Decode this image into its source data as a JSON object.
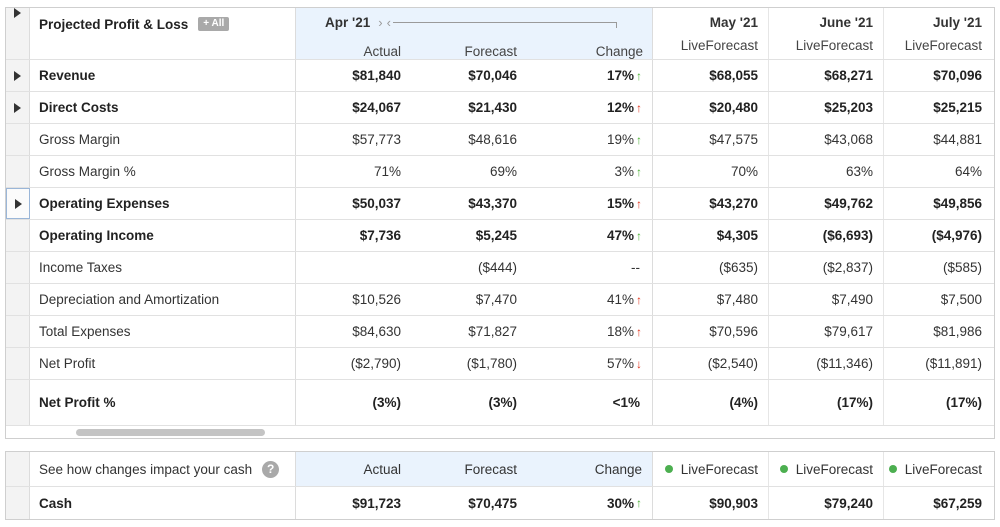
{
  "header": {
    "title": "Projected Profit & Loss",
    "all_badge": "+ All",
    "apr": {
      "month": "Apr '21",
      "nav_left": "›",
      "nav_right": "‹",
      "actual": "Actual",
      "forecast": "Forecast",
      "change": "Change"
    },
    "may": {
      "month": "May '21",
      "sub": "LiveForecast"
    },
    "june": {
      "month": "June '21",
      "sub": "LiveForecast"
    },
    "july": {
      "month": "July '21",
      "sub": "LiveForecast"
    }
  },
  "rows": [
    {
      "label": "Revenue",
      "actual": "$81,840",
      "forecast": "$70,046",
      "change": "17%",
      "change_dir": "up-green",
      "may": "$68,055",
      "june": "$68,271",
      "july": "$70,096"
    },
    {
      "label": "Direct Costs",
      "actual": "$24,067",
      "forecast": "$21,430",
      "change": "12%",
      "change_dir": "up-red",
      "may": "$20,480",
      "june": "$25,203",
      "july": "$25,215"
    },
    {
      "label": "Gross Margin",
      "actual": "$57,773",
      "forecast": "$48,616",
      "change": "19%",
      "change_dir": "up-green",
      "may": "$47,575",
      "june": "$43,068",
      "july": "$44,881"
    },
    {
      "label": "Gross Margin %",
      "actual": "71%",
      "forecast": "69%",
      "change": "3%",
      "change_dir": "up-green",
      "may": "70%",
      "june": "63%",
      "july": "64%"
    },
    {
      "label": "Operating Expenses",
      "actual": "$50,037",
      "forecast": "$43,370",
      "change": "15%",
      "change_dir": "up-red",
      "may": "$43,270",
      "june": "$49,762",
      "july": "$49,856"
    },
    {
      "label": "Operating Income",
      "actual": "$7,736",
      "forecast": "$5,245",
      "change": "47%",
      "change_dir": "up-green",
      "may": "$4,305",
      "june": "($6,693)",
      "july": "($4,976)"
    },
    {
      "label": "Income Taxes",
      "actual": "",
      "forecast": "($444)",
      "change": "--",
      "change_dir": "none",
      "may": "($635)",
      "june": "($2,837)",
      "july": "($585)"
    },
    {
      "label": "Depreciation and Amortization",
      "actual": "$10,526",
      "forecast": "$7,470",
      "change": "41%",
      "change_dir": "up-red",
      "may": "$7,480",
      "june": "$7,490",
      "july": "$7,500"
    },
    {
      "label": "Total Expenses",
      "actual": "$84,630",
      "forecast": "$71,827",
      "change": "18%",
      "change_dir": "up-red",
      "may": "$70,596",
      "june": "$79,617",
      "july": "$81,986"
    },
    {
      "label": "Net Profit",
      "actual": "($2,790)",
      "forecast": "($1,780)",
      "change": "57%",
      "change_dir": "down-red",
      "may": "($2,540)",
      "june": "($11,346)",
      "july": "($11,891)"
    },
    {
      "label": "Net Profit %",
      "actual": "(3%)",
      "forecast": "(3%)",
      "change": "<1%",
      "change_dir": "none",
      "may": "(4%)",
      "june": "(17%)",
      "july": "(17%)"
    }
  ],
  "cash": {
    "prompt": "See how changes impact your cash",
    "help": "?",
    "actual_label": "Actual",
    "forecast_label": "Forecast",
    "change_label": "Change",
    "live_label": "LiveForecast",
    "row_label": "Cash",
    "actual": "$91,723",
    "forecast": "$70,475",
    "change": "30%",
    "change_dir": "up-green",
    "may": "$90,903",
    "june": "$79,240",
    "july": "$67,259"
  },
  "arrows": {
    "up": "↑",
    "down": "↓"
  },
  "colors": {
    "green": "#4caf36",
    "red": "#e0341c",
    "highlight_blue": "#eaf3fd",
    "live_dot": "#4caf50"
  }
}
